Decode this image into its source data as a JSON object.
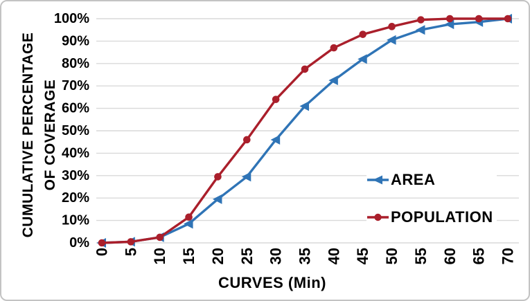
{
  "chart": {
    "x_axis_title": "CURVES (Min)",
    "y_axis_title_line1": "CUMULATIVE PERCENTAGE",
    "y_axis_title_line2": "OF COVERAGE"
  },
  "chart_data": {
    "type": "line",
    "title": "",
    "xlabel": "CURVES (Min)",
    "ylabel": "CUMULATIVE PERCENTAGE OF COVERAGE",
    "x": [
      0,
      5,
      10,
      15,
      20,
      25,
      30,
      35,
      40,
      45,
      50,
      55,
      60,
      65,
      70
    ],
    "xtick_labels": [
      "0",
      "5",
      "10",
      "15",
      "20",
      "25",
      "30",
      "35",
      "40",
      "45",
      "50",
      "55",
      "60",
      "65",
      "70"
    ],
    "ytick_labels": [
      "0%",
      "10%",
      "20%",
      "30%",
      "40%",
      "50%",
      "60%",
      "70%",
      "80%",
      "90%",
      "100%"
    ],
    "xlim": [
      0,
      70
    ],
    "ylim": [
      0,
      100
    ],
    "grid": "horizontal",
    "legend_position": "inside-right",
    "series": [
      {
        "name": "AREA",
        "color": "#2f74b6",
        "marker": "triangle-left",
        "values": [
          0,
          0.5,
          2.5,
          8.5,
          19.5,
          29.5,
          46,
          61,
          72.5,
          82,
          90.5,
          95,
          97.5,
          98.5,
          100
        ]
      },
      {
        "name": "POPULATION",
        "color": "#aa1f2b",
        "marker": "circle",
        "values": [
          0,
          0.5,
          2.5,
          11.5,
          29.5,
          46,
          64,
          77.5,
          87,
          93,
          96.5,
          99.5,
          100,
          100,
          100
        ]
      }
    ],
    "gridline_color": "#d9d9d9",
    "border_color": "#c3c3c3",
    "text_color": "#000000"
  }
}
